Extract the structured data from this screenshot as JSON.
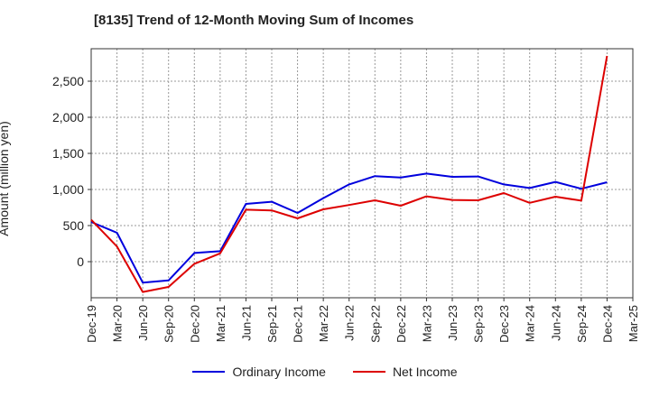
{
  "chart_data": {
    "type": "line",
    "title": "[8135]  Trend of 12-Month Moving Sum of Incomes",
    "ylabel": "Amount (million yen)",
    "xlabel": "",
    "categories": [
      "Dec-19",
      "Mar-20",
      "Jun-20",
      "Sep-20",
      "Dec-20",
      "Mar-21",
      "Jun-21",
      "Sep-21",
      "Dec-21",
      "Mar-22",
      "Jun-22",
      "Sep-22",
      "Dec-22",
      "Mar-23",
      "Jun-23",
      "Sep-23",
      "Dec-23",
      "Mar-24",
      "Jun-24",
      "Sep-24",
      "Dec-24",
      "Mar-25"
    ],
    "ylim": [
      -500,
      2950
    ],
    "yticks": [
      0,
      500,
      1000,
      1500,
      2000,
      2500
    ],
    "ytick_labels": [
      "0",
      "500",
      "1,000",
      "1,500",
      "2,000",
      "2,500"
    ],
    "grid": true,
    "legend_position": "bottom-center",
    "series": [
      {
        "name": "Ordinary Income",
        "color": "#0000dd",
        "values": [
          550,
          400,
          -290,
          -260,
          120,
          145,
          800,
          830,
          675,
          880,
          1070,
          1185,
          1165,
          1220,
          1175,
          1180,
          1070,
          1020,
          1105,
          1010,
          1100,
          null
        ]
      },
      {
        "name": "Net Income",
        "color": "#dd0000",
        "values": [
          580,
          210,
          -420,
          -350,
          -30,
          115,
          720,
          710,
          600,
          725,
          785,
          850,
          775,
          905,
          855,
          850,
          950,
          815,
          900,
          845,
          2850,
          null
        ]
      }
    ]
  }
}
